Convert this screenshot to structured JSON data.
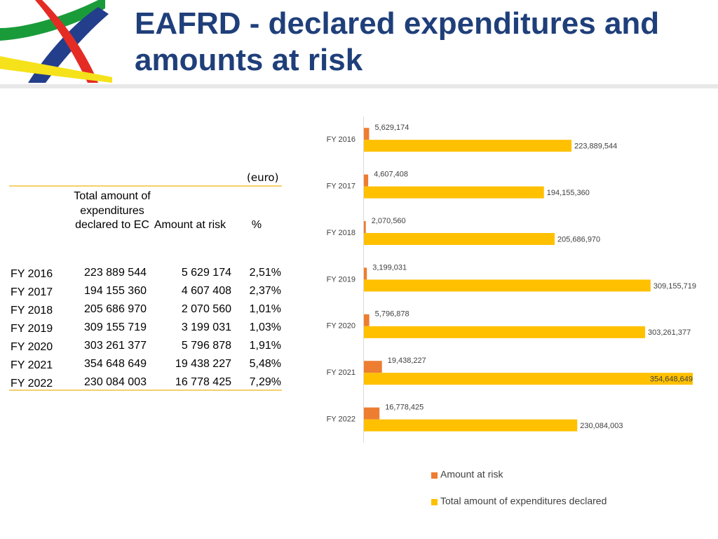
{
  "header": {
    "title": "EAFRD - declared expenditures and amounts at risk"
  },
  "table": {
    "unit": "(euro)",
    "columns": [
      "Total amount of expenditures declared to EC",
      "Amount at risk",
      "%"
    ],
    "rows": [
      [
        "FY 2016",
        "223 889 544",
        "5 629 174",
        "2,51%"
      ],
      [
        "FY 2017",
        "194 155 360",
        "4 607 408",
        "2,37%"
      ],
      [
        "FY 2018",
        "205 686 970",
        "2 070 560",
        "1,01%"
      ],
      [
        "FY 2019",
        "309 155 719",
        "3 199 031",
        "1,03%"
      ],
      [
        "FY 2020",
        "303 261 377",
        "5 796 878",
        "1,91%"
      ],
      [
        "FY 2021",
        "354 648 649",
        "19 438 227",
        "5,48%"
      ],
      [
        "FY 2022",
        "230 084 003",
        "16 778 425",
        "7,29%"
      ]
    ]
  },
  "chart_data": {
    "type": "bar",
    "orientation": "horizontal",
    "categories": [
      "FY 2016",
      "FY 2017",
      "FY 2018",
      "FY 2019",
      "FY 2020",
      "FY 2021",
      "FY 2022"
    ],
    "series": [
      {
        "name": "Amount at risk",
        "color": "#ed7d31",
        "values": [
          5629174,
          4607408,
          2070560,
          3199031,
          5796878,
          19438227,
          16778425
        ],
        "value_labels": [
          "5,629,174",
          "4,607,408",
          "2,070,560",
          "3,199,031",
          "5,796,878",
          "19,438,227",
          "16,778,425"
        ]
      },
      {
        "name": "Total amount of expenditures declared",
        "color": "#ffc000",
        "values": [
          223889544,
          194155360,
          205686970,
          309155719,
          303261377,
          354648649,
          230084003
        ],
        "value_labels": [
          "223,889,544",
          "194,155,360",
          "205,686,970",
          "309,155,719",
          "303,261,377",
          "354,648,649",
          "230,084,003"
        ]
      }
    ],
    "legend": "bottom"
  }
}
